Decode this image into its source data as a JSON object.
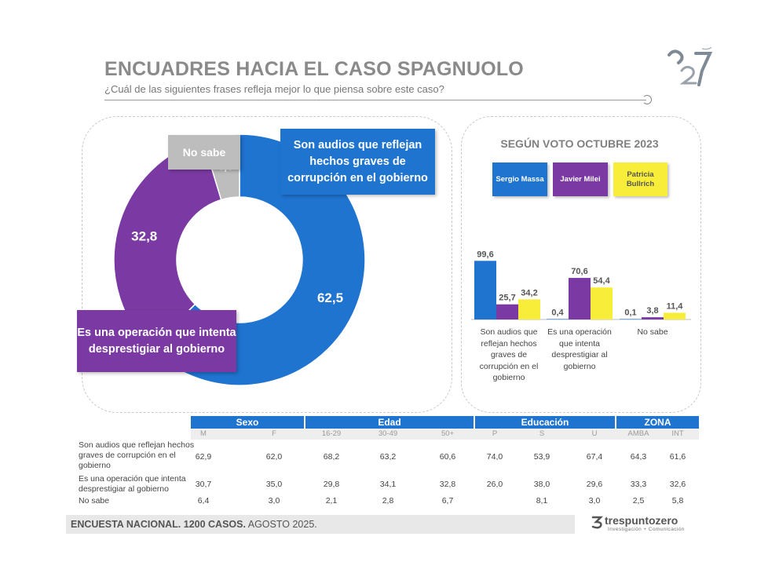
{
  "header": {
    "title": "ENCUADRES HACIA EL CASO SPAGNUOLO",
    "subtitle": "¿Cuál de las siguientes frases refleja mejor lo que piensa sobre este caso?"
  },
  "colors": {
    "blue": "#1f74d0",
    "purple": "#7b3aa3",
    "gray": "#bdbdbd",
    "yellow": "#f8ee3a"
  },
  "chart_data": [
    {
      "type": "pie",
      "categories": [
        "Son audios que reflejan hechos graves de corrupción en el gobierno",
        "Es una operación que intenta desprestigiar al gobierno",
        "No sabe"
      ],
      "values": [
        62.5,
        32.8,
        4.7
      ],
      "value_labels": [
        "62,5",
        "32,8",
        "4,7"
      ],
      "callouts": {
        "blue": "Son audios que reflejan hechos graves de corrupción en el gobierno",
        "purple": "Es una operación que intenta desprestigiar al gobierno",
        "gray": "No sabe"
      }
    },
    {
      "type": "bar",
      "title": "SEGÚN VOTO OCTUBRE 2023",
      "categories": [
        "Son audios que reflejan hechos graves de corrupción en el gobierno",
        "Es una operación que intenta desprestigiar al gobierno",
        "No sabe"
      ],
      "series": [
        {
          "name": "Sergio Massa",
          "values": [
            99.6,
            0.4,
            0.1
          ],
          "labels": [
            "99,6",
            "0,4",
            "0,1"
          ]
        },
        {
          "name": "Javier Milei",
          "values": [
            25.7,
            70.6,
            3.8
          ],
          "labels": [
            "25,7",
            "70,6",
            "3,8"
          ]
        },
        {
          "name": "Patricia Bullrich",
          "values": [
            34.2,
            54.4,
            11.4
          ],
          "labels": [
            "34,2",
            "54,4",
            "11,4"
          ]
        }
      ],
      "legend": [
        "Sergio Massa",
        "Javier Milei",
        "Patricia Bullrich"
      ],
      "ylim": [
        0,
        100
      ]
    },
    {
      "type": "table",
      "groups": [
        "Sexo",
        "Edad",
        "Educación",
        "ZONA"
      ],
      "columns": [
        "M",
        "F",
        "16-29",
        "30-49",
        "50+",
        "P",
        "S",
        "U",
        "AMBA",
        "INT"
      ],
      "rows": [
        {
          "label": "Son audios que reflejan hechos graves de corrupción en el gobierno",
          "values": [
            "62,9",
            "62,0",
            "68,2",
            "63,2",
            "60,6",
            "74,0",
            "53,9",
            "67,4",
            "64,3",
            "61,6"
          ]
        },
        {
          "label": "Es una operación que intenta desprestigiar al gobierno",
          "values": [
            "30,7",
            "35,0",
            "29,8",
            "34,1",
            "32,8",
            "26,0",
            "38,0",
            "29,6",
            "33,3",
            "32,6"
          ]
        },
        {
          "label": "No sabe",
          "values": [
            "6,4",
            "3,0",
            "2,1",
            "2,8",
            "6,7",
            "",
            "8,1",
            "3,0",
            "2,5",
            "5,8"
          ]
        }
      ]
    }
  ],
  "footer": {
    "text_bold": "ENCUESTA NACIONAL. 1200 CASOS.",
    "text_rest": " AGOSTO 2025.",
    "brand": "trespuntozero",
    "tagline": "Investigación + Comunicación"
  }
}
